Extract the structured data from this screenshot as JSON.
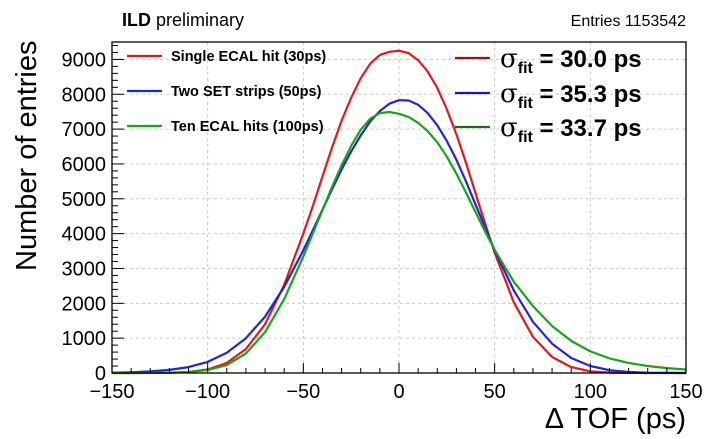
{
  "header": {
    "experiment": "ILD",
    "status": "preliminary",
    "entries_label": "Entries",
    "entries_value": "1153542"
  },
  "chart_data": {
    "type": "line",
    "title": "",
    "xlabel": "Δ TOF (ps)",
    "ylabel": "Number of entries",
    "xlim": [
      -150,
      150
    ],
    "ylim": [
      0,
      9500
    ],
    "x_ticks": [
      "−150",
      "−100",
      "−50",
      "0",
      "50",
      "100",
      "150"
    ],
    "y_ticks": [
      "0",
      "1000",
      "2000",
      "3000",
      "4000",
      "5000",
      "6000",
      "7000",
      "8000",
      "9000"
    ],
    "grid": true,
    "legend_position": "top-left",
    "x": [
      -150,
      -140,
      -130,
      -120,
      -110,
      -100,
      -90,
      -80,
      -70,
      -60,
      -50,
      -45,
      -40,
      -35,
      -30,
      -25,
      -20,
      -15,
      -10,
      -5,
      0,
      5,
      10,
      15,
      20,
      25,
      30,
      35,
      40,
      45,
      50,
      60,
      70,
      80,
      90,
      100,
      110,
      120,
      130,
      140,
      150
    ],
    "series": [
      {
        "name": "Single ECAL hit (30ps)",
        "color": "#e0191b",
        "values": [
          0,
          0,
          2,
          8,
          30,
          100,
          290,
          690,
          1400,
          2530,
          4000,
          4800,
          5640,
          6470,
          7240,
          7900,
          8460,
          8880,
          9130,
          9220,
          9250,
          9180,
          8980,
          8650,
          8180,
          7570,
          6850,
          6030,
          5160,
          4290,
          3450,
          2030,
          1040,
          460,
          170,
          50,
          12,
          2,
          0,
          0,
          0
        ]
      },
      {
        "name": "Two SET strips (50ps)",
        "color": "#2323d8",
        "values": [
          10,
          20,
          45,
          90,
          170,
          320,
          580,
          1000,
          1620,
          2470,
          3520,
          4100,
          4690,
          5270,
          5840,
          6360,
          6820,
          7220,
          7520,
          7730,
          7830,
          7820,
          7700,
          7460,
          7110,
          6660,
          6120,
          5500,
          4840,
          4180,
          3520,
          2370,
          1470,
          840,
          430,
          200,
          80,
          30,
          10,
          3,
          0
        ]
      },
      {
        "name": "Ten ECAL hits (100ps)",
        "color": "#1aa31a",
        "values": [
          0,
          0,
          2,
          10,
          30,
          85,
          230,
          560,
          1170,
          2120,
          3340,
          4010,
          4680,
          5340,
          5960,
          6520,
          6980,
          7300,
          7460,
          7490,
          7440,
          7350,
          7180,
          6940,
          6620,
          6210,
          5720,
          5180,
          4620,
          4060,
          3530,
          2620,
          1920,
          1350,
          920,
          620,
          420,
          290,
          200,
          140,
          100
        ]
      }
    ],
    "fits": [
      {
        "symbol": "σ",
        "subscript": "fit",
        "text": " = 30.0 ps",
        "color": "#a01010"
      },
      {
        "symbol": "σ",
        "subscript": "fit",
        "text": " = 35.3 ps",
        "color": "#1818a0"
      },
      {
        "symbol": "σ",
        "subscript": "fit",
        "text": " = 33.7 ps",
        "color": "#147014"
      }
    ]
  }
}
